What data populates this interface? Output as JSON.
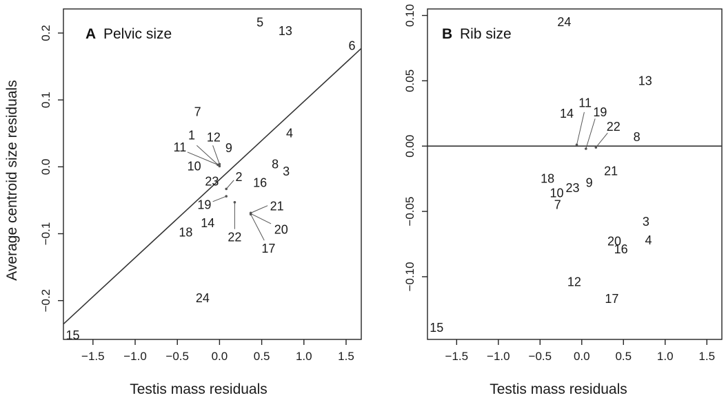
{
  "chart_data": [
    {
      "type": "scatter",
      "panel_letter": "A",
      "title": "Pelvic size",
      "xlabel": "Testis mass residuals",
      "ylabel": "Average centroid size residuals",
      "xlim": [
        -1.85,
        1.68
      ],
      "ylim": [
        -0.258,
        0.236
      ],
      "xticks": [
        -1.5,
        -1.0,
        -0.5,
        0.0,
        0.5,
        1.0,
        1.5
      ],
      "xtick_labels": [
        "−1.5",
        "−1.0",
        "−0.5",
        "0.0",
        "0.5",
        "1.0",
        "1.5"
      ],
      "yticks": [
        -0.2,
        -0.1,
        0.0,
        0.1,
        0.2
      ],
      "ytick_labels": [
        "−0.2",
        "−0.1",
        "0.0",
        "0.1",
        "0.2"
      ],
      "grid": false,
      "fit_line": {
        "x": [
          -1.85,
          1.68
        ],
        "y": [
          -0.235,
          0.177
        ]
      },
      "points": [
        {
          "label": "5",
          "x": 0.48,
          "y": 0.216
        },
        {
          "label": "13",
          "x": 0.78,
          "y": 0.203
        },
        {
          "label": "6",
          "x": 1.57,
          "y": 0.181
        },
        {
          "label": "7",
          "x": -0.26,
          "y": 0.082
        },
        {
          "label": "4",
          "x": 0.83,
          "y": 0.05
        },
        {
          "label": "1",
          "x": -0.33,
          "y": 0.047
        },
        {
          "label": "12",
          "x": -0.07,
          "y": 0.044
        },
        {
          "label": "9",
          "x": 0.11,
          "y": 0.028
        },
        {
          "label": "11",
          "x": -0.47,
          "y": 0.029
        },
        {
          "label": "10",
          "x": -0.3,
          "y": 0.001
        },
        {
          "label": "8",
          "x": 0.66,
          "y": 0.004
        },
        {
          "label": "3",
          "x": 0.79,
          "y": -0.007
        },
        {
          "label": "2",
          "x": 0.23,
          "y": -0.015
        },
        {
          "label": "23",
          "x": -0.09,
          "y": -0.022
        },
        {
          "label": "16",
          "x": 0.48,
          "y": -0.024
        },
        {
          "label": "19",
          "x": -0.18,
          "y": -0.057
        },
        {
          "label": "21",
          "x": 0.68,
          "y": -0.059
        },
        {
          "label": "14",
          "x": -0.14,
          "y": -0.084
        },
        {
          "label": "20",
          "x": 0.73,
          "y": -0.094
        },
        {
          "label": "18",
          "x": -0.4,
          "y": -0.098
        },
        {
          "label": "22",
          "x": 0.18,
          "y": -0.105
        },
        {
          "label": "17",
          "x": 0.58,
          "y": -0.122
        },
        {
          "label": "24",
          "x": -0.2,
          "y": -0.196
        },
        {
          "label": "15",
          "x": -1.74,
          "y": -0.252
        }
      ],
      "leaders": [
        {
          "from": [
            -0.27,
            0.032
          ],
          "to": [
            0.0,
            0.001
          ]
        },
        {
          "from": [
            -0.38,
            0.022
          ],
          "to": [
            -0.02,
            0.003
          ]
        },
        {
          "from": [
            -0.08,
            0.032
          ],
          "to": [
            0.0,
            0.004
          ]
        },
        {
          "from": [
            0.17,
            -0.02
          ],
          "to": [
            0.08,
            -0.033
          ]
        },
        {
          "from": [
            -0.08,
            -0.052
          ],
          "to": [
            0.08,
            -0.044
          ]
        },
        {
          "from": [
            0.18,
            -0.093
          ],
          "to": [
            0.18,
            -0.053
          ]
        },
        {
          "from": [
            0.57,
            -0.058
          ],
          "to": [
            0.37,
            -0.069
          ]
        },
        {
          "from": [
            0.61,
            -0.085
          ],
          "to": [
            0.37,
            -0.07
          ]
        },
        {
          "from": [
            0.53,
            -0.11
          ],
          "to": [
            0.37,
            -0.071
          ]
        }
      ]
    },
    {
      "type": "scatter",
      "panel_letter": "B",
      "title": "Rib size",
      "xlabel": "Testis mass residuals",
      "ylabel": "",
      "xlim": [
        -1.85,
        1.68
      ],
      "ylim": [
        -0.148,
        0.105
      ],
      "xticks": [
        -1.5,
        -1.0,
        -0.5,
        0.0,
        0.5,
        1.0,
        1.5
      ],
      "xtick_labels": [
        "−1.5",
        "−1.0",
        "−0.5",
        "0.0",
        "0.5",
        "1.0",
        "1.5"
      ],
      "yticks": [
        -0.1,
        -0.05,
        0.0,
        0.05,
        0.1
      ],
      "ytick_labels": [
        "−0.10",
        "−0.05",
        "0.00",
        "0.05",
        "0.10"
      ],
      "grid": false,
      "fit_line": {
        "x": [
          -1.85,
          1.68
        ],
        "y": [
          0.0,
          0.0
        ]
      },
      "points": [
        {
          "label": "24",
          "x": -0.21,
          "y": 0.095
        },
        {
          "label": "13",
          "x": 0.76,
          "y": 0.05
        },
        {
          "label": "11",
          "x": 0.04,
          "y": 0.033
        },
        {
          "label": "14",
          "x": -0.18,
          "y": 0.025
        },
        {
          "label": "19",
          "x": 0.22,
          "y": 0.026
        },
        {
          "label": "22",
          "x": 0.38,
          "y": 0.015
        },
        {
          "label": "8",
          "x": 0.66,
          "y": 0.007
        },
        {
          "label": "21",
          "x": 0.35,
          "y": -0.019
        },
        {
          "label": "18",
          "x": -0.41,
          "y": -0.025
        },
        {
          "label": "9",
          "x": 0.09,
          "y": -0.028
        },
        {
          "label": "23",
          "x": -0.11,
          "y": -0.032
        },
        {
          "label": "10",
          "x": -0.3,
          "y": -0.036
        },
        {
          "label": "7",
          "x": -0.29,
          "y": -0.045
        },
        {
          "label": "3",
          "x": 0.77,
          "y": -0.058
        },
        {
          "label": "20",
          "x": 0.39,
          "y": -0.073
        },
        {
          "label": "4",
          "x": 0.8,
          "y": -0.072
        },
        {
          "label": "16",
          "x": 0.47,
          "y": -0.079
        },
        {
          "label": "12",
          "x": -0.09,
          "y": -0.104
        },
        {
          "label": "17",
          "x": 0.36,
          "y": -0.117
        },
        {
          "label": "15",
          "x": -1.74,
          "y": -0.139
        }
      ],
      "leaders": [
        {
          "from": [
            0.03,
            0.026
          ],
          "to": [
            -0.06,
            0.001
          ]
        },
        {
          "from": [
            0.16,
            0.021
          ],
          "to": [
            0.05,
            -0.002
          ]
        },
        {
          "from": [
            0.31,
            0.01
          ],
          "to": [
            0.17,
            -0.001
          ]
        }
      ]
    }
  ]
}
